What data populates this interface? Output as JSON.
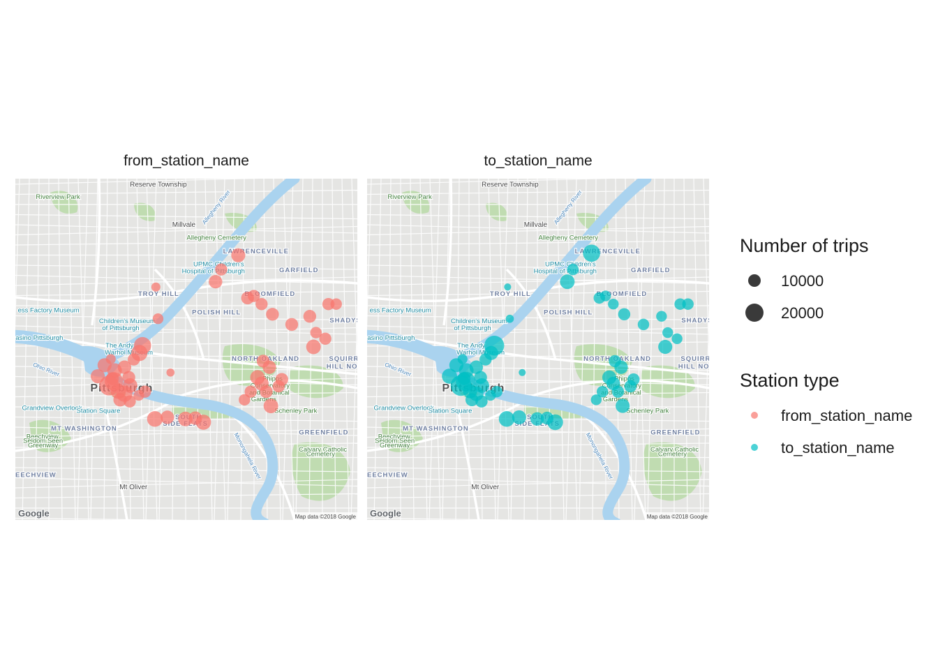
{
  "panels": [
    {
      "title": "from_station_name",
      "station_type": "from_station_name",
      "color": "#F8766D",
      "points": [
        {
          "lon": -79.9895,
          "lat": 40.4652,
          "trips": 5000
        },
        {
          "lon": -79.9888,
          "lat": 40.4574,
          "trips": 7000
        },
        {
          "lon": -79.9938,
          "lat": 40.4508,
          "trips": 18000
        },
        {
          "lon": -79.9948,
          "lat": 40.449,
          "trips": 16000
        },
        {
          "lon": -79.9966,
          "lat": 40.4474,
          "trips": 9000
        },
        {
          "lon": -79.9996,
          "lat": 40.4455,
          "trips": 11000
        },
        {
          "lon": -80.0028,
          "lat": 40.4447,
          "trips": 13000
        },
        {
          "lon": -80.006,
          "lat": 40.446,
          "trips": 12000
        },
        {
          "lon": -80.0035,
          "lat": 40.4427,
          "trips": 10000
        },
        {
          "lon": -80.0082,
          "lat": 40.4433,
          "trips": 12000
        },
        {
          "lon": -80.0045,
          "lat": 40.441,
          "trips": 24000
        },
        {
          "lon": -80.003,
          "lat": 40.442,
          "trips": 21000
        },
        {
          "lon": -80.0016,
          "lat": 40.4396,
          "trips": 14000
        },
        {
          "lon": -79.9996,
          "lat": 40.439,
          "trips": 16000
        },
        {
          "lon": -80.001,
          "lat": 40.4375,
          "trips": 11000
        },
        {
          "lon": -79.9979,
          "lat": 40.4371,
          "trips": 9000
        },
        {
          "lon": -79.995,
          "lat": 40.4386,
          "trips": 7000
        },
        {
          "lon": -79.9978,
          "lat": 40.441,
          "trips": 13000
        },
        {
          "lon": -79.993,
          "lat": 40.4395,
          "trips": 9000
        },
        {
          "lon": -79.9982,
          "lat": 40.443,
          "trips": 10000
        },
        {
          "lon": -80.004,
          "lat": 40.4475,
          "trips": 6000
        },
        {
          "lon": -79.9848,
          "lat": 40.4442,
          "trips": 4000
        },
        {
          "lon": -79.9898,
          "lat": 40.4328,
          "trips": 15000
        },
        {
          "lon": -79.9858,
          "lat": 40.4332,
          "trips": 11000
        },
        {
          "lon": -79.98,
          "lat": 40.4328,
          "trips": 13000
        },
        {
          "lon": -79.9768,
          "lat": 40.433,
          "trips": 11000
        },
        {
          "lon": -79.9742,
          "lat": 40.432,
          "trips": 14000
        },
        {
          "lon": -79.9703,
          "lat": 40.4665,
          "trips": 11000
        },
        {
          "lon": -79.963,
          "lat": 40.473,
          "trips": 12000
        },
        {
          "lon": -79.9685,
          "lat": 40.4695,
          "trips": 9000
        },
        {
          "lon": -79.96,
          "lat": 40.4625,
          "trips": 10000
        },
        {
          "lon": -79.958,
          "lat": 40.463,
          "trips": 9000
        },
        {
          "lon": -79.9555,
          "lat": 40.461,
          "trips": 9000
        },
        {
          "lon": -79.952,
          "lat": 40.4585,
          "trips": 10000
        },
        {
          "lon": -79.9458,
          "lat": 40.456,
          "trips": 10000
        },
        {
          "lon": -79.94,
          "lat": 40.458,
          "trips": 10000
        },
        {
          "lon": -79.934,
          "lat": 40.461,
          "trips": 9000
        },
        {
          "lon": -79.9315,
          "lat": 40.461,
          "trips": 8000
        },
        {
          "lon": -79.938,
          "lat": 40.454,
          "trips": 8000
        },
        {
          "lon": -79.935,
          "lat": 40.4525,
          "trips": 9000
        },
        {
          "lon": -79.9388,
          "lat": 40.4505,
          "trips": 13000
        },
        {
          "lon": -79.955,
          "lat": 40.447,
          "trips": 10000
        },
        {
          "lon": -79.953,
          "lat": 40.4455,
          "trips": 11000
        },
        {
          "lon": -79.949,
          "lat": 40.4425,
          "trips": 10000
        },
        {
          "lon": -79.9568,
          "lat": 40.443,
          "trips": 13000
        },
        {
          "lon": -79.9555,
          "lat": 40.4415,
          "trips": 12000
        },
        {
          "lon": -79.954,
          "lat": 40.4395,
          "trips": 10000
        },
        {
          "lon": -79.959,
          "lat": 40.4395,
          "trips": 9000
        },
        {
          "lon": -79.95,
          "lat": 40.4408,
          "trips": 9000
        },
        {
          "lon": -79.961,
          "lat": 40.4375,
          "trips": 8000
        },
        {
          "lon": -79.9525,
          "lat": 40.436,
          "trips": 13000
        }
      ]
    },
    {
      "title": "to_station_name",
      "station_type": "to_station_name",
      "color": "#00BFC4",
      "points": [
        {
          "lon": -79.9895,
          "lat": 40.4652,
          "trips": 3000
        },
        {
          "lon": -79.9888,
          "lat": 40.4574,
          "trips": 4000
        },
        {
          "lon": -79.9938,
          "lat": 40.4508,
          "trips": 24000
        },
        {
          "lon": -79.9948,
          "lat": 40.449,
          "trips": 12000
        },
        {
          "lon": -79.9966,
          "lat": 40.4474,
          "trips": 9000
        },
        {
          "lon": -79.9996,
          "lat": 40.4455,
          "trips": 11000
        },
        {
          "lon": -80.0028,
          "lat": 40.4447,
          "trips": 13000
        },
        {
          "lon": -80.006,
          "lat": 40.446,
          "trips": 12000
        },
        {
          "lon": -80.0035,
          "lat": 40.4427,
          "trips": 10000
        },
        {
          "lon": -80.0082,
          "lat": 40.4433,
          "trips": 14000
        },
        {
          "lon": -80.0045,
          "lat": 40.441,
          "trips": 26000
        },
        {
          "lon": -80.003,
          "lat": 40.442,
          "trips": 23000
        },
        {
          "lon": -80.0016,
          "lat": 40.4396,
          "trips": 12000
        },
        {
          "lon": -79.9996,
          "lat": 40.439,
          "trips": 13000
        },
        {
          "lon": -80.001,
          "lat": 40.4375,
          "trips": 10000
        },
        {
          "lon": -79.9979,
          "lat": 40.4371,
          "trips": 9000
        },
        {
          "lon": -79.995,
          "lat": 40.4386,
          "trips": 7000
        },
        {
          "lon": -79.9978,
          "lat": 40.441,
          "trips": 13000
        },
        {
          "lon": -79.993,
          "lat": 40.4395,
          "trips": 8000
        },
        {
          "lon": -79.9982,
          "lat": 40.443,
          "trips": 10000
        },
        {
          "lon": -80.004,
          "lat": 40.4475,
          "trips": 6000
        },
        {
          "lon": -79.9848,
          "lat": 40.4442,
          "trips": 3000
        },
        {
          "lon": -79.9898,
          "lat": 40.4328,
          "trips": 15000
        },
        {
          "lon": -79.9858,
          "lat": 40.4332,
          "trips": 12000
        },
        {
          "lon": -79.98,
          "lat": 40.4328,
          "trips": 11000
        },
        {
          "lon": -79.9768,
          "lat": 40.433,
          "trips": 10000
        },
        {
          "lon": -79.9742,
          "lat": 40.432,
          "trips": 15000
        },
        {
          "lon": -79.9703,
          "lat": 40.4665,
          "trips": 13000
        },
        {
          "lon": -79.9625,
          "lat": 40.4735,
          "trips": 18000
        },
        {
          "lon": -79.9685,
          "lat": 40.4695,
          "trips": 8000
        },
        {
          "lon": -79.96,
          "lat": 40.4625,
          "trips": 8000
        },
        {
          "lon": -79.958,
          "lat": 40.463,
          "trips": 7000
        },
        {
          "lon": -79.9555,
          "lat": 40.461,
          "trips": 7000
        },
        {
          "lon": -79.952,
          "lat": 40.4585,
          "trips": 9000
        },
        {
          "lon": -79.9458,
          "lat": 40.456,
          "trips": 8000
        },
        {
          "lon": -79.94,
          "lat": 40.458,
          "trips": 7000
        },
        {
          "lon": -79.934,
          "lat": 40.461,
          "trips": 8000
        },
        {
          "lon": -79.9315,
          "lat": 40.461,
          "trips": 8000
        },
        {
          "lon": -79.938,
          "lat": 40.454,
          "trips": 7000
        },
        {
          "lon": -79.935,
          "lat": 40.4525,
          "trips": 7000
        },
        {
          "lon": -79.9388,
          "lat": 40.4505,
          "trips": 12000
        },
        {
          "lon": -79.955,
          "lat": 40.447,
          "trips": 9000
        },
        {
          "lon": -79.953,
          "lat": 40.4455,
          "trips": 11000
        },
        {
          "lon": -79.949,
          "lat": 40.4425,
          "trips": 9000
        },
        {
          "lon": -79.9568,
          "lat": 40.443,
          "trips": 12000
        },
        {
          "lon": -79.9555,
          "lat": 40.4415,
          "trips": 11000
        },
        {
          "lon": -79.954,
          "lat": 40.4395,
          "trips": 9000
        },
        {
          "lon": -79.959,
          "lat": 40.4395,
          "trips": 8000
        },
        {
          "lon": -79.95,
          "lat": 40.4408,
          "trips": 9000
        },
        {
          "lon": -79.961,
          "lat": 40.4375,
          "trips": 7000
        },
        {
          "lon": -79.9525,
          "lat": 40.436,
          "trips": 12000
        }
      ]
    }
  ],
  "map_extent": {
    "lon_min": -80.0347,
    "lon_max": -79.9247,
    "lat_min": 40.408,
    "lat_max": 40.4918
  },
  "map_labels": [
    {
      "text": "Riverview Park",
      "lon": -80.021,
      "lat": 40.4868,
      "kind": "park"
    },
    {
      "text": "Reserve Township",
      "lon": -79.9887,
      "lat": 40.4898,
      "kind": "place"
    },
    {
      "text": "Millvale",
      "lon": -79.9805,
      "lat": 40.48,
      "kind": "place"
    },
    {
      "text": "Allegheny Cemetery",
      "lon": -79.97,
      "lat": 40.4768,
      "kind": "park"
    },
    {
      "text": "LAWRENCEVILLE",
      "lon": -79.9573,
      "lat": 40.4735,
      "kind": "district"
    },
    {
      "text": "UPMC Children's",
      "lon": -79.9693,
      "lat": 40.4703,
      "kind": "poi"
    },
    {
      "text": "Hospital of Pittsburgh",
      "lon": -79.971,
      "lat": 40.4686,
      "kind": "poi"
    },
    {
      "text": "GARFIELD",
      "lon": -79.9435,
      "lat": 40.4688,
      "kind": "district"
    },
    {
      "text": "TROY HILL",
      "lon": -79.9886,
      "lat": 40.463,
      "kind": "district"
    },
    {
      "text": "BLOOMFIELD",
      "lon": -79.9528,
      "lat": 40.463,
      "kind": "district"
    },
    {
      "text": "ess Factory Museum",
      "lon": -80.024,
      "lat": 40.459,
      "kind": "poi"
    },
    {
      "text": "POLISH HILL",
      "lon": -79.97,
      "lat": 40.4585,
      "kind": "district"
    },
    {
      "text": "SHADYS",
      "lon": -79.9285,
      "lat": 40.4565,
      "kind": "district"
    },
    {
      "text": "Children's Museum",
      "lon": -79.9987,
      "lat": 40.4563,
      "kind": "poi"
    },
    {
      "text": "of Pittsburgh",
      "lon": -80.0008,
      "lat": 40.4546,
      "kind": "poi"
    },
    {
      "text": "asino Pittsburgh",
      "lon": -80.027,
      "lat": 40.4522,
      "kind": "poi"
    },
    {
      "text": "The Andy",
      "lon": -80.0012,
      "lat": 40.4503,
      "kind": "poi"
    },
    {
      "text": "Warhol Museum",
      "lon": -79.9982,
      "lat": 40.4486,
      "kind": "poi"
    },
    {
      "text": "NORTH OAKLAND",
      "lon": -79.9542,
      "lat": 40.4471,
      "kind": "district"
    },
    {
      "text": "SQUIRR",
      "lon": -79.929,
      "lat": 40.4471,
      "kind": "district"
    },
    {
      "text": "HILL NO",
      "lon": -79.9296,
      "lat": 40.4452,
      "kind": "district"
    },
    {
      "text": "Ohio River",
      "lon": -80.025,
      "lat": 40.4445,
      "kind": "water"
    },
    {
      "text": "Pittsburgh",
      "lon": -80.0005,
      "lat": 40.4395,
      "kind": "city"
    },
    {
      "text": "Phipps",
      "lon": -79.952,
      "lat": 40.4422,
      "kind": "park"
    },
    {
      "text": "Conservatory",
      "lon": -79.9528,
      "lat": 40.4405,
      "kind": "park"
    },
    {
      "text": "and Botanical",
      "lon": -79.953,
      "lat": 40.4388,
      "kind": "park"
    },
    {
      "text": "Gardens",
      "lon": -79.9548,
      "lat": 40.4371,
      "kind": "park"
    },
    {
      "text": "Grandview Overlook",
      "lon": -80.0229,
      "lat": 40.435,
      "kind": "poi"
    },
    {
      "text": "Station Square",
      "lon": -80.008,
      "lat": 40.4343,
      "kind": "poi"
    },
    {
      "text": "Schenley Park",
      "lon": -79.9445,
      "lat": 40.4343,
      "kind": "park"
    },
    {
      "text": "SOUTH",
      "lon": -79.979,
      "lat": 40.4328,
      "kind": "district"
    },
    {
      "text": "SIDE FLATS",
      "lon": -79.98,
      "lat": 40.4311,
      "kind": "district"
    },
    {
      "text": "MT WASHINGTON",
      "lon": -80.0126,
      "lat": 40.4299,
      "kind": "district"
    },
    {
      "text": "GREENFIELD",
      "lon": -79.9355,
      "lat": 40.429,
      "kind": "district"
    },
    {
      "text": "Beechview",
      "lon": -80.026,
      "lat": 40.428,
      "kind": "park"
    },
    {
      "text": "Seldom Seen",
      "lon": -80.0258,
      "lat": 40.4269,
      "kind": "park"
    },
    {
      "text": "Greenway",
      "lon": -80.0258,
      "lat": 40.4258,
      "kind": "park"
    },
    {
      "text": "Monongahela River",
      "lon": -79.9605,
      "lat": 40.4235,
      "kind": "water"
    },
    {
      "text": "Calvary Catholic",
      "lon": -79.9358,
      "lat": 40.4248,
      "kind": "park"
    },
    {
      "text": "Cemetery",
      "lon": -79.9365,
      "lat": 40.4237,
      "kind": "park"
    },
    {
      "text": "BEECHVIEW",
      "lon": -80.029,
      "lat": 40.4185,
      "kind": "district"
    },
    {
      "text": "Mt Oliver",
      "lon": -79.9967,
      "lat": 40.4155,
      "kind": "place"
    },
    {
      "text": "Allegheny River",
      "lon": -79.9696,
      "lat": 40.4845,
      "kind": "water"
    }
  ],
  "attribution": {
    "logo": "Google",
    "text": "Map data ©2018 Google"
  },
  "legend": {
    "size_title": "Number of trips",
    "size_entries": [
      {
        "label": "10000",
        "value": 10000
      },
      {
        "label": "20000",
        "value": 20000
      }
    ],
    "color_title": "Station type",
    "color_entries": [
      {
        "label": "from_station_name",
        "color": "#F8766D"
      },
      {
        "label": "to_station_name",
        "color": "#00BFC4"
      }
    ]
  }
}
